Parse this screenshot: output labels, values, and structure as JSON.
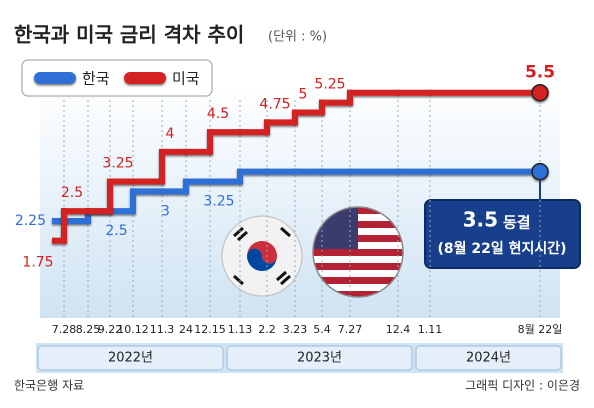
{
  "chart_data": {
    "type": "step",
    "title": "한국과 미국 금리 격차 추이",
    "unit_note": "(단위 : %)",
    "categories": [
      null,
      "7.28",
      "8.25",
      "9.22",
      "10.12",
      "11.3",
      "24",
      "12.15",
      "1.13",
      "2.2",
      "3.23",
      "5.4",
      "7.27",
      "12.4",
      "1.11",
      "8월 22일"
    ],
    "x_groups": [
      "2022년",
      "2023년",
      "2024년"
    ],
    "series": [
      {
        "name": "한국",
        "color": "#2f6fd6",
        "values": [
          2.25,
          2.25,
          2.5,
          2.5,
          3,
          3,
          3.25,
          3.25,
          3.5,
          3.5,
          3.5,
          3.5,
          3.5,
          3.5,
          3.5,
          3.5
        ]
      },
      {
        "name": "미국",
        "color": "#d42020",
        "values": [
          1.75,
          2.5,
          2.5,
          3.25,
          3.25,
          4,
          4,
          4.5,
          4.5,
          4.75,
          5,
          5.25,
          5.5,
          5.5,
          5.5,
          5.5
        ]
      }
    ],
    "ylim": [
      0.5,
      6
    ],
    "callout": "동결",
    "callout_note": "(8월 22일 현지시간)",
    "source": "한국은행 자료",
    "credit": "그래픽 디자인 : 이은경"
  }
}
